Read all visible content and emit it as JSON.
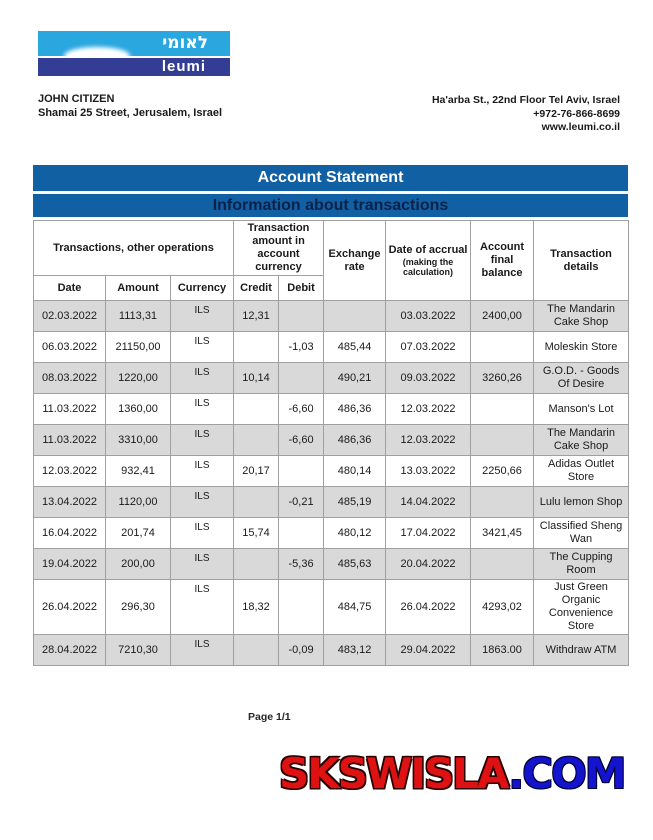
{
  "logo": {
    "hebrew": "לאומי",
    "latin": "leumi",
    "light_blue": "#2BA7DF",
    "navy": "#343D94"
  },
  "sender": {
    "name": "JOHN CITIZEN",
    "address": "Shamai 25 Street, Jerusalem, Israel"
  },
  "bank_contact": {
    "address": "Ha'arba St., 22nd Floor Tel Aviv, Israel",
    "phone": "+972-76-866-8699",
    "website": "www.leumi.co.il"
  },
  "statement": {
    "title": "Account Statement",
    "subtitle": "Information about transactions",
    "header_bg": "#1160A4",
    "subtitle_text_color": "#0D2149",
    "row_shade_color": "#D9D9D9",
    "table": {
      "group_headers": {
        "operations": "Transactions, other operations",
        "amount_in_currency": "Transaction amount in account currency",
        "exchange_rate": "Exchange rate",
        "accrual_date": "Date of accrual",
        "accrual_note": "(making the calculation)",
        "final_balance": "Account final balance",
        "details": "Transaction details"
      },
      "sub_headers": {
        "date": "Date",
        "amount": "Amount",
        "currency": "Currency",
        "credit": "Credit",
        "debit": "Debit"
      }
    }
  },
  "transactions": [
    {
      "date": "02.03.2022",
      "amount": "1113,31",
      "currency": "ILS",
      "credit": "12,31",
      "debit": "",
      "rate": "",
      "accrual": "03.03.2022",
      "balance": "2400,00",
      "details": "The Mandarin Cake Shop"
    },
    {
      "date": "06.03.2022",
      "amount": "21150,00",
      "currency": "ILS",
      "credit": "",
      "debit": "-1,03",
      "rate": "485,44",
      "accrual": "07.03.2022",
      "balance": "",
      "details": "Moleskin Store"
    },
    {
      "date": "08.03.2022",
      "amount": "1220,00",
      "currency": "ILS",
      "credit": "10,14",
      "debit": "",
      "rate": "490,21",
      "accrual": "09.03.2022",
      "balance": "3260,26",
      "details": "G.O.D. - Goods Of Desire"
    },
    {
      "date": "11.03.2022",
      "amount": "1360,00",
      "currency": "ILS",
      "credit": "",
      "debit": "-6,60",
      "rate": "486,36",
      "accrual": "12.03.2022",
      "balance": "",
      "details": "Manson's Lot"
    },
    {
      "date": "11.03.2022",
      "amount": "3310,00",
      "currency": "ILS",
      "credit": "",
      "debit": "-6,60",
      "rate": "486,36",
      "accrual": "12.03.2022",
      "balance": "",
      "details": "The Mandarin Cake Shop"
    },
    {
      "date": "12.03.2022",
      "amount": "932,41",
      "currency": "ILS",
      "credit": "20,17",
      "debit": "",
      "rate": "480,14",
      "accrual": "13.03.2022",
      "balance": "2250,66",
      "details": "Adidas Outlet Store"
    },
    {
      "date": "13.04.2022",
      "amount": "1120,00",
      "currency": "ILS",
      "credit": "",
      "debit": "-0,21",
      "rate": "485,19",
      "accrual": "14.04.2022",
      "balance": "",
      "details": "Lulu lemon Shop"
    },
    {
      "date": "16.04.2022",
      "amount": "201,74",
      "currency": "ILS",
      "credit": "15,74",
      "debit": "",
      "rate": "480,12",
      "accrual": "17.04.2022",
      "balance": "3421,45",
      "details": "Classified Sheng Wan"
    },
    {
      "date": "19.04.2022",
      "amount": "200,00",
      "currency": "ILS",
      "credit": "",
      "debit": "-5,36",
      "rate": "485,63",
      "accrual": "20.04.2022",
      "balance": "",
      "details": "The Cupping Room"
    },
    {
      "date": "26.04.2022",
      "amount": "296,30",
      "currency": "ILS",
      "credit": "18,32",
      "debit": "",
      "rate": "484,75",
      "accrual": "26.04.2022",
      "balance": "4293,02",
      "details": "Just Green Organic Convenience Store"
    },
    {
      "date": "28.04.2022",
      "amount": "7210,30",
      "currency": "ILS",
      "credit": "",
      "debit": "-0,09",
      "rate": "483,12",
      "accrual": "29.04.2022",
      "balance": "1863.00",
      "details": "Withdraw ATM"
    }
  ],
  "footer": {
    "page": "Page 1/1"
  },
  "watermark": {
    "primary": "SKSWISLA",
    "separator": ".",
    "secondary": "COM",
    "primary_color": "#DE1212",
    "secondary_color": "#1414CE"
  }
}
